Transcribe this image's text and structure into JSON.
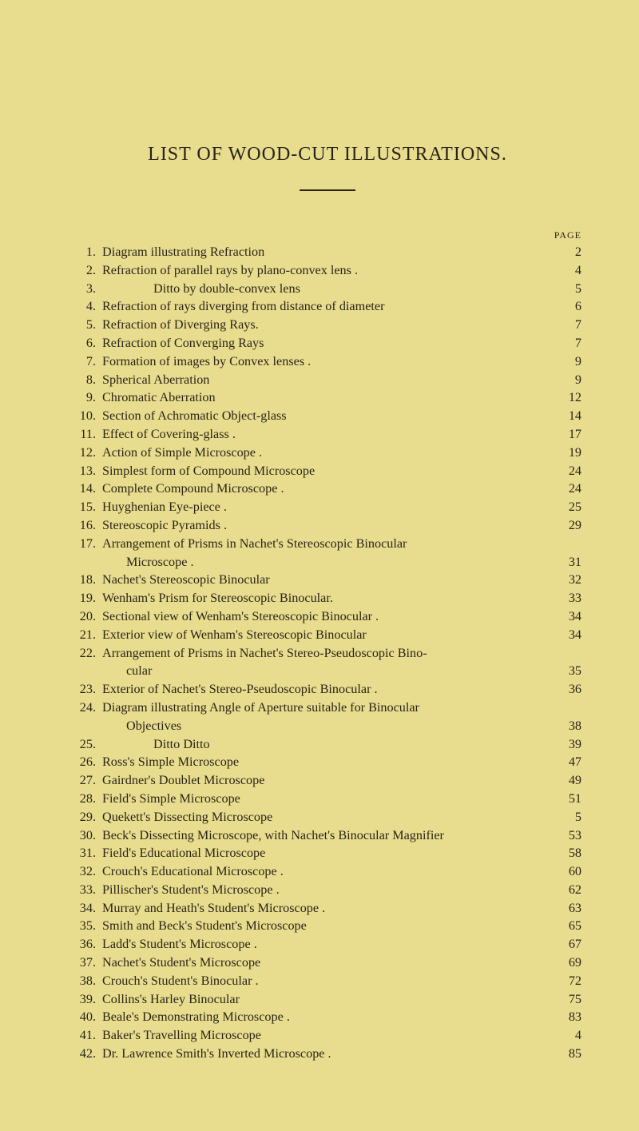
{
  "title": "LIST OF WOOD-CUT ILLUSTRATIONS.",
  "page_label": "PAGE",
  "entries": [
    {
      "n": "1.",
      "t": "Diagram illustrating Refraction",
      "p": "2"
    },
    {
      "n": "2.",
      "t": "Refraction of parallel rays by plano-convex lens .",
      "p": "4"
    },
    {
      "n": "3.",
      "t": "Ditto                        by double-convex lens",
      "p": "5",
      "indent": true
    },
    {
      "n": "4.",
      "t": "Refraction of rays diverging from distance of diameter",
      "p": "6"
    },
    {
      "n": "5.",
      "t": "Refraction of Diverging Rays.",
      "p": "7"
    },
    {
      "n": "6.",
      "t": "Refraction of Converging Rays",
      "p": "7"
    },
    {
      "n": "7.",
      "t": "Formation of images by Convex lenses .",
      "p": "9"
    },
    {
      "n": "8.",
      "t": "Spherical Aberration",
      "p": "9"
    },
    {
      "n": "9.",
      "t": "Chromatic Aberration",
      "p": "12"
    },
    {
      "n": "10.",
      "t": "Section of Achromatic Object-glass",
      "p": "14"
    },
    {
      "n": "11.",
      "t": "Effect of Covering-glass .",
      "p": "17"
    },
    {
      "n": "12.",
      "t": "Action of Simple Microscope .",
      "p": "19"
    },
    {
      "n": "13.",
      "t": "Simplest form of Compound Microscope",
      "p": "24"
    },
    {
      "n": "14.",
      "t": "Complete Compound Microscope .",
      "p": "24"
    },
    {
      "n": "15.",
      "t": "Huyghenian Eye-piece .",
      "p": "25"
    },
    {
      "n": "16.",
      "t": "Stereoscopic Pyramids .",
      "p": "29"
    },
    {
      "n": "17.",
      "t": "Arrangement of Prisms in Nachet's Stereoscopic Binocular",
      "p": "",
      "no_leader": true
    },
    {
      "n": "",
      "t": "Microscope .",
      "p": "31",
      "cont": true
    },
    {
      "n": "18.",
      "t": "Nachet's Stereoscopic Binocular",
      "p": "32"
    },
    {
      "n": "19.",
      "t": "Wenham's Prism for Stereoscopic Binocular.",
      "p": "33"
    },
    {
      "n": "20.",
      "t": "Sectional view of Wenham's Stereoscopic Binocular .",
      "p": "34"
    },
    {
      "n": "21.",
      "t": "Exterior view of Wenham's Stereoscopic Binocular",
      "p": "34"
    },
    {
      "n": "22.",
      "t": "Arrangement of Prisms in Nachet's Stereo-Pseudoscopic Bino-",
      "p": "",
      "no_leader": true
    },
    {
      "n": "",
      "t": "cular",
      "p": "35",
      "cont": true
    },
    {
      "n": "23.",
      "t": "Exterior of Nachet's Stereo-Pseudoscopic Binocular .",
      "p": "36"
    },
    {
      "n": "24.",
      "t": "Diagram illustrating Angle of Aperture suitable for Binocular",
      "p": "",
      "no_leader": true
    },
    {
      "n": "",
      "t": "Objectives",
      "p": "38",
      "cont": true
    },
    {
      "n": "25.",
      "t": "Ditto                        Ditto",
      "p": "39",
      "indent": true
    },
    {
      "n": "26.",
      "t": "Ross's Simple Microscope",
      "p": "47"
    },
    {
      "n": "27.",
      "t": "Gairdner's Doublet Microscope",
      "p": "49"
    },
    {
      "n": "28.",
      "t": "Field's Simple Microscope",
      "p": "51"
    },
    {
      "n": "29.",
      "t": "Quekett's Dissecting Microscope",
      "p": "5"
    },
    {
      "n": "30.",
      "t": "Beck's Dissecting Microscope, with Nachet's Binocular Magnifier",
      "p": "53"
    },
    {
      "n": "31.",
      "t": "Field's Educational Microscope",
      "p": "58"
    },
    {
      "n": "32.",
      "t": "Crouch's Educational Microscope .",
      "p": "60"
    },
    {
      "n": "33.",
      "t": "Pillischer's Student's Microscope .",
      "p": "62"
    },
    {
      "n": "34.",
      "t": "Murray and Heath's Student's Microscope .",
      "p": "63"
    },
    {
      "n": "35.",
      "t": "Smith and Beck's Student's Microscope",
      "p": "65"
    },
    {
      "n": "36.",
      "t": "Ladd's Student's Microscope .",
      "p": "67"
    },
    {
      "n": "37.",
      "t": "Nachet's Student's Microscope",
      "p": "69"
    },
    {
      "n": "38.",
      "t": "Crouch's Student's Binocular .",
      "p": "72"
    },
    {
      "n": "39.",
      "t": "Collins's Harley Binocular",
      "p": "75"
    },
    {
      "n": "40.",
      "t": "Beale's Demonstrating Microscope .",
      "p": "83"
    },
    {
      "n": "41.",
      "t": "Baker's Travelling Microscope",
      "p": "4"
    },
    {
      "n": "42.",
      "t": "Dr. Lawrence Smith's Inverted Microscope .",
      "p": "85"
    }
  ]
}
